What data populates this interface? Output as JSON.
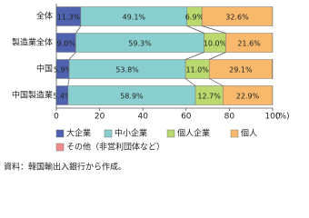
{
  "chart_data": {
    "type": "stacked-barh",
    "categories": [
      "全体",
      "製造業全体",
      "中国",
      "中国製造業"
    ],
    "series": [
      {
        "name": "大企業",
        "color": "#4f62b0",
        "values": [
          11.3,
          9.0,
          5.9,
          5.4
        ],
        "value_labels": [
          "11.3%",
          "9.0%",
          "5.9%",
          "5.4%"
        ]
      },
      {
        "name": "中小企業",
        "color": "#8acfcf",
        "values": [
          49.1,
          59.3,
          53.8,
          58.9
        ],
        "value_labels": [
          "49.1%",
          "59.3%",
          "53.8%",
          "58.9%"
        ]
      },
      {
        "name": "個人企業",
        "color": "#b9d86d",
        "values": [
          6.9,
          10.0,
          11.0,
          12.7
        ],
        "value_labels": [
          "6.9%",
          "10.0%",
          "11.0%",
          "12.7%"
        ]
      },
      {
        "name": "個人",
        "color": "#f8b96d",
        "values": [
          32.6,
          21.6,
          29.1,
          22.9
        ],
        "value_labels": [
          "32.6%",
          "21.6%",
          "29.1%",
          "22.9%"
        ]
      },
      {
        "name": "その他（非営利団体など）",
        "color": "#f08a8a",
        "values": [
          0.1,
          0.1,
          0.2,
          0.1
        ]
      }
    ],
    "xlim": [
      0,
      100
    ],
    "xticks": [
      0,
      20,
      40,
      60,
      80,
      100
    ],
    "xlabel": "(%)",
    "source": "資料：韓国輸出入銀行から作成。"
  }
}
